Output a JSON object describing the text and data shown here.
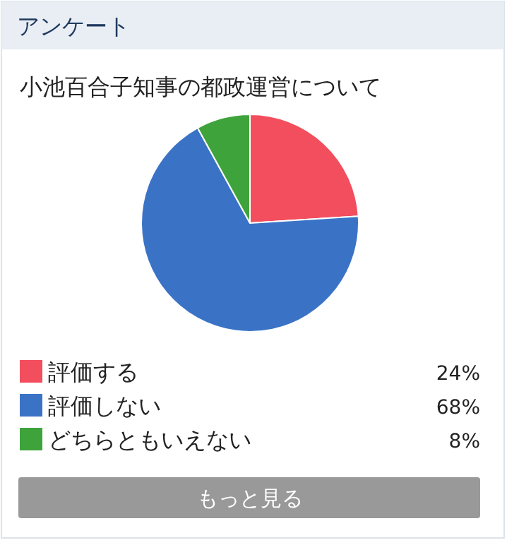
{
  "chart_data": {
    "type": "pie",
    "title": "小池百合子知事の都政運営について",
    "categories": [
      "評価する",
      "評価しない",
      "どちらともいえない"
    ],
    "values": [
      24,
      68,
      8
    ],
    "colors": [
      "#f24e5e",
      "#3a73c6",
      "#3ea33a"
    ],
    "value_labels": [
      "24%",
      "68%",
      "8%"
    ],
    "legend": "bottom",
    "annotations": [
      "アンケート",
      "もっと見る"
    ]
  }
}
